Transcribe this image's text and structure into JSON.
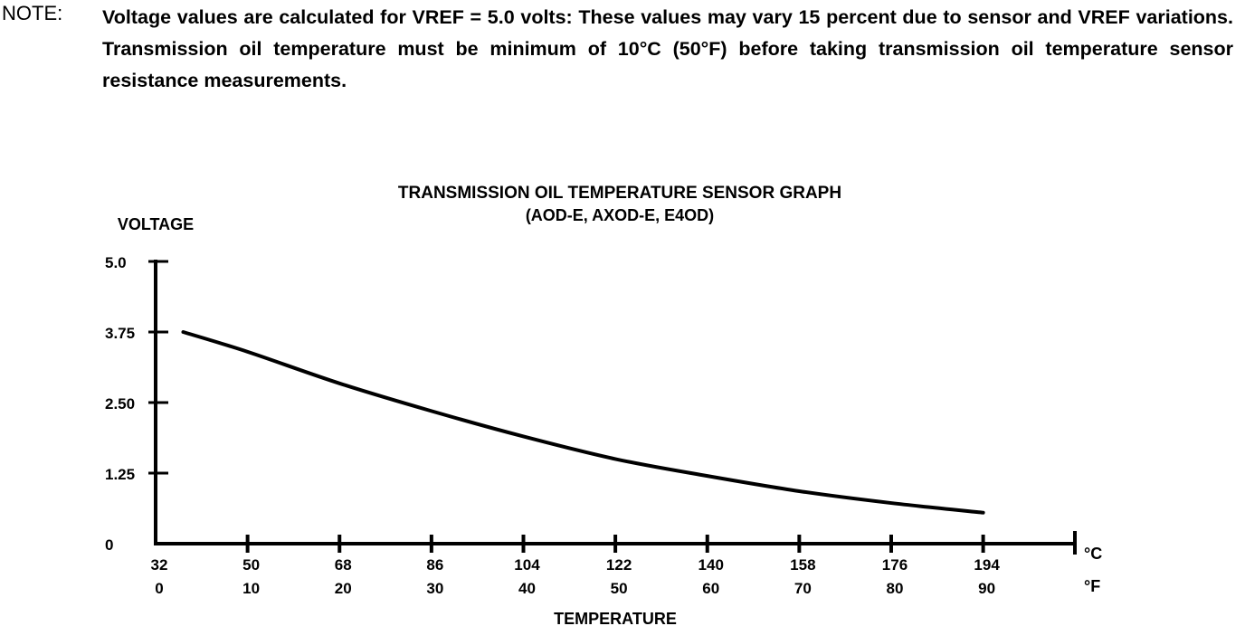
{
  "note": {
    "label": "NOTE:",
    "text": "Voltage values are calculated for VREF = 5.0 volts: These values may vary 15 percent due to sensor and VREF variations. Transmission oil temperature must be minimum of 10°C (50°F) before taking transmission oil temperature sensor resistance measurements."
  },
  "chart_data": {
    "type": "line",
    "title": "TRANSMISSION OIL TEMPERATURE SENSOR GRAPH",
    "subtitle": "(AOD-E, AXOD-E, E4OD)",
    "ylabel": "VOLTAGE",
    "xlabel": "TEMPERATURE",
    "ylim": [
      0,
      5.0
    ],
    "y_ticks": [
      "5.0",
      "3.75",
      "2.50",
      "1.25",
      "0"
    ],
    "y_tick_values": [
      5.0,
      3.75,
      2.5,
      1.25,
      0
    ],
    "x_unit_row1": "°C",
    "x_unit_row2": "°F",
    "x_tick_labels_row1": [
      "32",
      "50",
      "68",
      "86",
      "104",
      "122",
      "140",
      "158",
      "176",
      "194"
    ],
    "x_tick_labels_row2": [
      "0",
      "10",
      "20",
      "30",
      "40",
      "50",
      "60",
      "70",
      "80",
      "90"
    ],
    "x_ticks_celsius": [
      0,
      10,
      20,
      30,
      40,
      50,
      60,
      70,
      80,
      90
    ],
    "xlim_celsius": [
      0,
      100
    ],
    "series": [
      {
        "x_celsius": [
          3,
          10,
          20,
          30,
          40,
          50,
          60,
          70,
          80,
          90
        ],
        "values": [
          3.75,
          3.4,
          2.84,
          2.35,
          1.9,
          1.5,
          1.2,
          0.93,
          0.72,
          0.55
        ]
      }
    ],
    "grid": false,
    "legend": "none"
  }
}
